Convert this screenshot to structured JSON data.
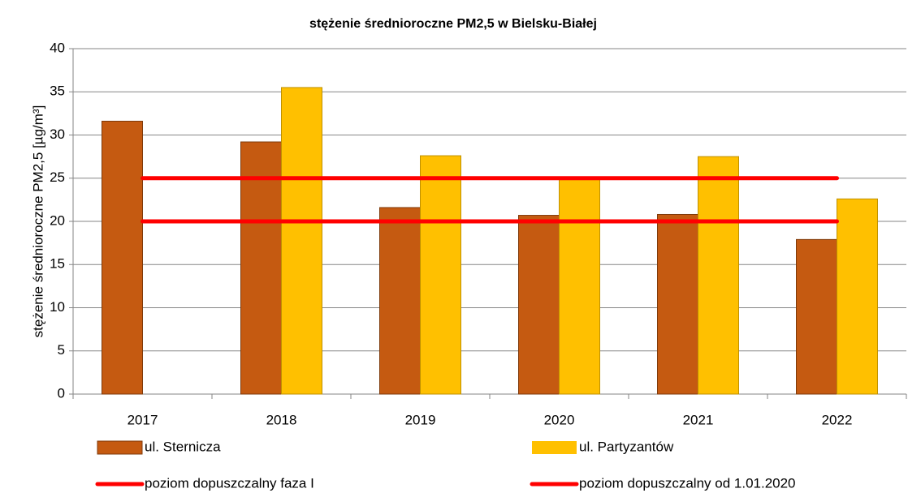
{
  "chart_data": {
    "type": "bar",
    "title": "stężenie średnioroczne PM2,5 w Bielsku-Białej",
    "y_label": "stężenie średnioroczne PM2,5 [µg/m³]",
    "categories": [
      "2017",
      "2018",
      "2019",
      "2020",
      "2021",
      "2022"
    ],
    "series": [
      {
        "name": "ul. Sternicza",
        "type": "bar",
        "color": "#c55a11",
        "values": [
          31.6,
          29.2,
          21.6,
          20.7,
          20.8,
          17.9
        ]
      },
      {
        "name": "ul. Partyzantów",
        "type": "bar",
        "color": "#ffc000",
        "values": [
          null,
          35.5,
          27.6,
          25.0,
          27.5,
          22.6
        ]
      },
      {
        "name": "poziom dopuszczalny faza I",
        "type": "line",
        "color": "#ff0000",
        "values": [
          25,
          25,
          25,
          25,
          25,
          25
        ]
      },
      {
        "name": "poziom dopuszczalny od 1.01.2020",
        "type": "line",
        "color": "#ff0000",
        "values": [
          20,
          20,
          20,
          20,
          20,
          20
        ]
      }
    ],
    "ylim": [
      0,
      40
    ],
    "yticks": [
      0,
      5,
      10,
      15,
      20,
      25,
      30,
      35,
      40
    ],
    "grid": true
  }
}
